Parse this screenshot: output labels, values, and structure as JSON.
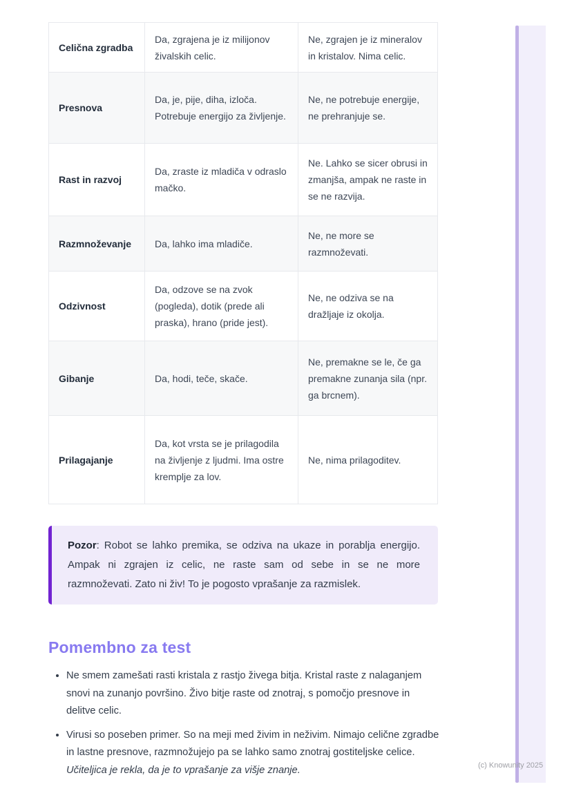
{
  "colors": {
    "accent": "#887af0",
    "callout-border": "#7123d1",
    "callout-bg": "#f0ebfa",
    "side-bar": "#c0b0e6",
    "side-panel": "#f2effb",
    "watermark": "#9fa0a6",
    "row-alt": "#f7f8f9",
    "table-border": "#e7e9ed",
    "text": "#343d4b",
    "heading-text": "#232d3b"
  },
  "table": {
    "rows": [
      {
        "header": "Celična zgradba",
        "yes": "Da, zgrajena je iz milijonov živalskih celic.",
        "no": "Ne, zgrajen je iz mineralov in kristalov. Nima celic."
      },
      {
        "header": "Presnova",
        "yes": "Da, je, pije, diha, izloča. Potrebuje energijo za življenje.",
        "no": "Ne, ne potrebuje energije, ne prehranjuje se."
      },
      {
        "header": "Rast in razvoj",
        "yes": "Da, zraste iz mladiča v odraslo mačko.",
        "no": "Ne. Lahko se sicer obrusi in zmanjša, ampak ne raste in se ne razvija."
      },
      {
        "header": "Razmnoževanje",
        "yes": "Da, lahko ima mladiče.",
        "no": "Ne, ne more se razmnoževati."
      },
      {
        "header": "Odzivnost",
        "yes": "Da, odzove se na zvok (pogleda), dotik (prede ali praska), hrano (pride jest).",
        "no": "Ne, ne odziva se na dražljaje iz okolja."
      },
      {
        "header": "Gibanje",
        "yes": "Da, hodi, teče, skače.",
        "no": "Ne, premakne se le, če ga premakne zunanja sila (npr. ga brcnem)."
      },
      {
        "header": "Prilagajanje",
        "yes": "Da, kot vrsta se je prilagodila na življenje z ljudmi. Ima ostre kremplje za lov.",
        "no": "Ne, nima prilagoditev."
      }
    ]
  },
  "callout": {
    "label": "Pozor",
    "text": ": Robot se lahko premika, se odziva na ukaze in porablja energijo. Ampak ni zgrajen iz celic, ne raste sam od sebe in se ne more razmnoževati. Zato ni živ! To je pogosto vprašanje za razmislek."
  },
  "section": {
    "title": "Pomembno za test",
    "bullets": [
      {
        "text": "Ne smem zamešati rasti kristala z rastjo živega bitja. Kristal raste z nalaganjem snovi na zunanjo površino. Živo bitje raste od znotraj, s pomočjo presnove in delitve celic.",
        "italic": ""
      },
      {
        "text": "Virusi so poseben primer. So na meji med živim in neživim. Nimajo celične zgradbe in lastne presnove, razmnožujejo pa se lahko samo znotraj gostiteljske celice. ",
        "italic": "Učiteljica je rekla, da je to vprašanje za višje znanje."
      }
    ]
  },
  "footer": {
    "watermark": "(c) Knowunity 2025"
  }
}
